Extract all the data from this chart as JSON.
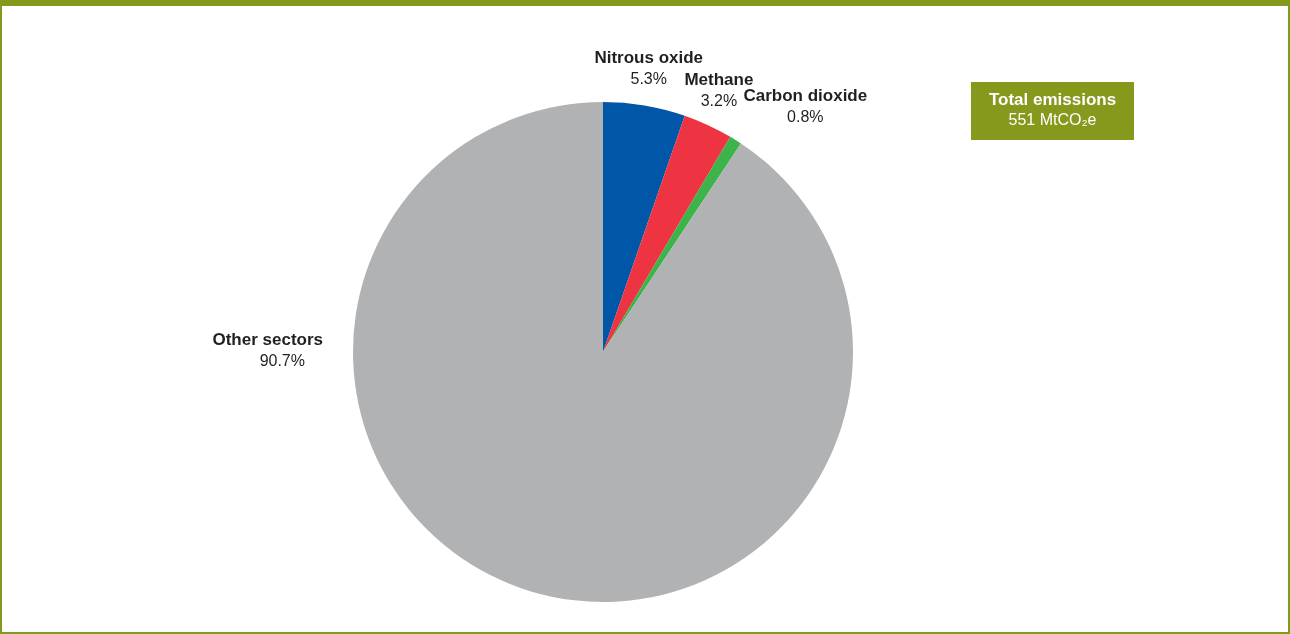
{
  "chart_data": {
    "type": "pie",
    "categories": [
      "Nitrous oxide",
      "Methane",
      "Carbon dioxide",
      "Other sectors"
    ],
    "values": [
      5.3,
      3.2,
      0.8,
      90.7
    ],
    "value_labels": [
      "5.3%",
      "3.2%",
      "0.8%",
      "90.7%"
    ],
    "colors": [
      "#0057a8",
      "#ee3342",
      "#3cb44a",
      "#b1b2b4"
    ],
    "annotations": [
      "Total emissions",
      "551 MtCO₂e"
    ],
    "legend": false
  }
}
